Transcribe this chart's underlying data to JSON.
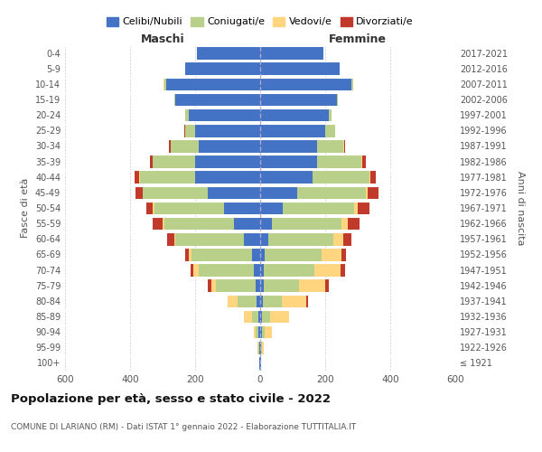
{
  "age_groups": [
    "100+",
    "95-99",
    "90-94",
    "85-89",
    "80-84",
    "75-79",
    "70-74",
    "65-69",
    "60-64",
    "55-59",
    "50-54",
    "45-49",
    "40-44",
    "35-39",
    "30-34",
    "25-29",
    "20-24",
    "15-19",
    "10-14",
    "5-9",
    "0-4"
  ],
  "birth_years": [
    "≤ 1921",
    "1922-1926",
    "1927-1931",
    "1932-1936",
    "1937-1941",
    "1942-1946",
    "1947-1951",
    "1952-1956",
    "1957-1961",
    "1962-1966",
    "1967-1971",
    "1972-1976",
    "1977-1981",
    "1982-1986",
    "1987-1991",
    "1992-1996",
    "1997-2001",
    "2002-2006",
    "2007-2011",
    "2012-2016",
    "2017-2021"
  ],
  "maschi": {
    "celibi": [
      2,
      3,
      5,
      5,
      10,
      15,
      20,
      25,
      50,
      80,
      110,
      160,
      200,
      200,
      190,
      200,
      220,
      260,
      290,
      230,
      195
    ],
    "coniugati": [
      0,
      3,
      10,
      20,
      60,
      120,
      170,
      185,
      210,
      215,
      215,
      200,
      170,
      130,
      85,
      30,
      10,
      5,
      5,
      0,
      0
    ],
    "vedovi": [
      0,
      2,
      5,
      25,
      30,
      15,
      15,
      10,
      5,
      5,
      5,
      2,
      2,
      0,
      0,
      0,
      0,
      0,
      2,
      0,
      0
    ],
    "divorziati": [
      0,
      0,
      0,
      0,
      0,
      10,
      10,
      10,
      20,
      30,
      20,
      20,
      15,
      10,
      5,
      2,
      0,
      0,
      0,
      0,
      0
    ]
  },
  "femmine": {
    "nubili": [
      2,
      3,
      5,
      5,
      8,
      10,
      12,
      15,
      25,
      35,
      70,
      115,
      160,
      175,
      175,
      200,
      210,
      235,
      280,
      245,
      195
    ],
    "coniugate": [
      0,
      3,
      10,
      25,
      60,
      110,
      155,
      175,
      200,
      215,
      220,
      210,
      175,
      135,
      80,
      30,
      10,
      5,
      5,
      0,
      0
    ],
    "vedove": [
      0,
      5,
      20,
      60,
      75,
      80,
      80,
      60,
      30,
      20,
      10,
      5,
      5,
      5,
      2,
      0,
      0,
      0,
      0,
      0,
      0
    ],
    "divorziate": [
      0,
      0,
      0,
      0,
      5,
      10,
      15,
      15,
      25,
      35,
      35,
      35,
      15,
      10,
      5,
      0,
      0,
      0,
      0,
      0,
      0
    ]
  },
  "colors": {
    "celibi_nubili": "#4472C4",
    "coniugati": "#B8D08A",
    "vedovi": "#FFD580",
    "divorziati": "#C0392B"
  },
  "legend_labels": [
    "Celibi/Nubili",
    "Coniugati/e",
    "Vedovi/e",
    "Divorziati/e"
  ],
  "xlabel_left": "Maschi",
  "xlabel_right": "Femmine",
  "ylabel": "Fasce di età",
  "ylabel_right": "Anni di nascita",
  "title": "Popolazione per età, sesso e stato civile - 2022",
  "subtitle": "COMUNE DI LARIANO (RM) - Dati ISTAT 1° gennaio 2022 - Elaborazione TUTTITALIA.IT",
  "xlim": 600,
  "background_color": "#ffffff",
  "grid_color": "#cccccc"
}
